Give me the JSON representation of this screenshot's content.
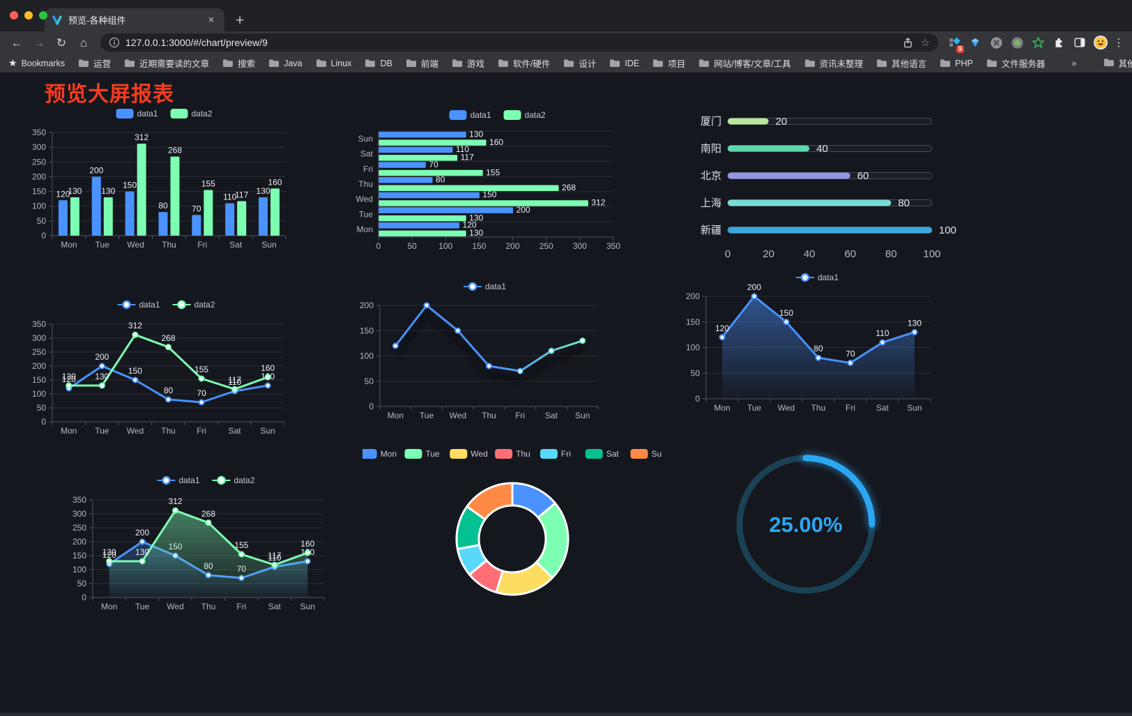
{
  "browser": {
    "tab_title": "预览-各种组件",
    "url": "127.0.0.1:3000/#/chart/preview/9",
    "new_tab_label": "+",
    "close_tab_label": "×",
    "extension_badge": "9",
    "bookmarks_label": "Bookmarks",
    "bookmarks": [
      "运营",
      "近期需要读的文章",
      "搜索",
      "Java",
      "Linux",
      "DB",
      "前端",
      "游戏",
      "软件/硬件",
      "设计",
      "IDE",
      "项目",
      "网站/博客/文章/工具",
      "资讯未整理",
      "其他语言",
      "PHP",
      "文件服务器"
    ],
    "bookmarks_overflow": "»",
    "other_bookmarks": "其他书签"
  },
  "page": {
    "title": "预览大屏报表",
    "title_color": "#f73b1e"
  },
  "chart_data": [
    {
      "id": "grouped-bar",
      "type": "bar",
      "categories": [
        "Mon",
        "Tue",
        "Wed",
        "Thu",
        "Fri",
        "Sat",
        "Sun"
      ],
      "series": [
        {
          "name": "data1",
          "color": "#4992ff",
          "values": [
            120,
            200,
            150,
            80,
            70,
            110,
            130
          ]
        },
        {
          "name": "data2",
          "color": "#7cffb2",
          "values": [
            130,
            130,
            312,
            268,
            155,
            117,
            160
          ]
        }
      ],
      "ylim": [
        0,
        350
      ],
      "yticks": [
        0,
        50,
        100,
        150,
        200,
        250,
        300,
        350
      ],
      "legend_position": "top",
      "show_labels": true,
      "grid": true
    },
    {
      "id": "horizontal-bar",
      "type": "bar-horizontal",
      "categories_top_to_bottom": [
        "Sun",
        "Sat",
        "Fri",
        "Thu",
        "Wed",
        "Tue",
        "Mon"
      ],
      "series": [
        {
          "name": "data1",
          "color": "#4992ff",
          "values": [
            130,
            110,
            70,
            80,
            150,
            200,
            120
          ]
        },
        {
          "name": "data2",
          "color": "#7cffb2",
          "values": [
            160,
            117,
            155,
            268,
            312,
            130,
            130
          ]
        }
      ],
      "xlim": [
        0,
        350
      ],
      "xticks": [
        0,
        50,
        100,
        150,
        200,
        250,
        300,
        350
      ],
      "legend_position": "top",
      "show_labels": true
    },
    {
      "id": "progress-bars",
      "type": "bar-horizontal",
      "rows": [
        {
          "label": "厦门",
          "value": 20,
          "color": "#b8e79e"
        },
        {
          "label": "南阳",
          "value": 40,
          "color": "#5ed7ad"
        },
        {
          "label": "北京",
          "value": 60,
          "color": "#9297e3"
        },
        {
          "label": "上海",
          "value": 80,
          "color": "#77dcd6"
        },
        {
          "label": "新疆",
          "value": 100,
          "color": "#3aa7dc"
        }
      ],
      "xlim": [
        0,
        100
      ],
      "xticks": [
        0,
        20,
        40,
        60,
        80,
        100
      ]
    },
    {
      "id": "multi-line",
      "type": "line",
      "categories": [
        "Mon",
        "Tue",
        "Wed",
        "Thu",
        "Fri",
        "Sat",
        "Sun"
      ],
      "series": [
        {
          "name": "data1",
          "color": "#4992ff",
          "values": [
            120,
            200,
            150,
            80,
            70,
            110,
            130
          ]
        },
        {
          "name": "data2",
          "color": "#7cffb2",
          "values": [
            130,
            130,
            312,
            268,
            155,
            117,
            160
          ]
        }
      ],
      "ylim": [
        0,
        350
      ],
      "yticks": [
        0,
        50,
        100,
        150,
        200,
        250,
        300,
        350
      ],
      "legend_position": "top",
      "show_labels": true
    },
    {
      "id": "gradient-line",
      "type": "line",
      "categories": [
        "Mon",
        "Tue",
        "Wed",
        "Thu",
        "Fri",
        "Sat",
        "Sun"
      ],
      "series": [
        {
          "name": "data1",
          "color": "#4992ff",
          "gradient": [
            "#4992ff",
            "#7cffb2"
          ],
          "values": [
            120,
            200,
            150,
            80,
            70,
            110,
            130
          ]
        }
      ],
      "ylim": [
        0,
        200
      ],
      "yticks": [
        0,
        50,
        100,
        150,
        200
      ],
      "legend_position": "top",
      "show_labels": false
    },
    {
      "id": "area-line",
      "type": "area",
      "categories": [
        "Mon",
        "Tue",
        "Wed",
        "Thu",
        "Fri",
        "Sat",
        "Sun"
      ],
      "series": [
        {
          "name": "data1",
          "color": "#4992ff",
          "area": true,
          "values": [
            120,
            200,
            150,
            80,
            70,
            110,
            130
          ]
        }
      ],
      "ylim": [
        0,
        200
      ],
      "yticks": [
        0,
        50,
        100,
        150,
        200
      ],
      "legend_position": "top",
      "show_labels": true
    },
    {
      "id": "multi-area-line",
      "type": "area",
      "categories": [
        "Mon",
        "Tue",
        "Wed",
        "Thu",
        "Fri",
        "Sat",
        "Sun"
      ],
      "series": [
        {
          "name": "data1",
          "color": "#4992ff",
          "area": true,
          "values": [
            120,
            200,
            150,
            80,
            70,
            110,
            130
          ]
        },
        {
          "name": "data2",
          "color": "#7cffb2",
          "area": true,
          "values": [
            130,
            130,
            312,
            268,
            155,
            117,
            160
          ]
        }
      ],
      "ylim": [
        0,
        350
      ],
      "yticks": [
        0,
        50,
        100,
        150,
        200,
        250,
        300,
        350
      ],
      "legend_position": "top",
      "show_labels": true
    },
    {
      "id": "donut",
      "type": "pie",
      "items": [
        {
          "name": "Mon",
          "value": 120,
          "color": "#4992ff"
        },
        {
          "name": "Tue",
          "value": 200,
          "color": "#7cffb2"
        },
        {
          "name": "Wed",
          "value": 150,
          "color": "#fddd60"
        },
        {
          "name": "Thu",
          "value": 80,
          "color": "#ff6e76"
        },
        {
          "name": "Fri",
          "value": 70,
          "color": "#58d9f9"
        },
        {
          "name": "Sat",
          "value": 110,
          "color": "#05c091"
        },
        {
          "name": "Sun",
          "value": 130,
          "color": "#ff8a45"
        }
      ],
      "legend_position": "top"
    },
    {
      "id": "gauge",
      "type": "gauge",
      "value": 25,
      "label": "25.00%",
      "color": "#2ba7f2",
      "track_color": "#1a4254"
    }
  ]
}
